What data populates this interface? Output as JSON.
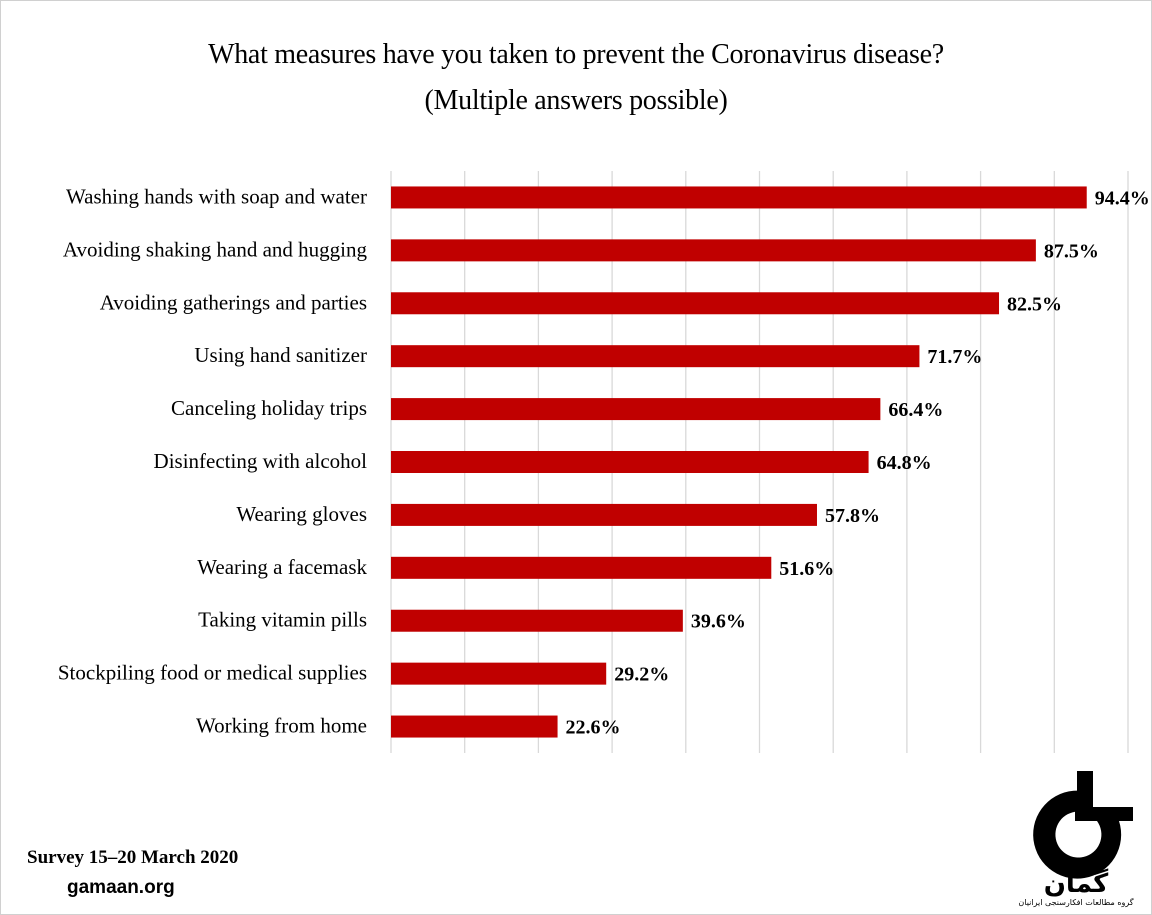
{
  "chart_data": {
    "type": "bar",
    "orientation": "horizontal",
    "title": "What measures have you taken to prevent the Coronavirus disease?",
    "subtitle": "(Multiple answers possible)",
    "categories": [
      "Washing hands with soap and water",
      "Avoiding shaking hand and hugging",
      "Avoiding gatherings and parties",
      "Using hand sanitizer",
      "Canceling holiday trips",
      "Disinfecting with alcohol",
      "Wearing gloves",
      "Wearing a facemask",
      "Taking vitamin pills",
      "Stockpiling food or medical supplies",
      "Working from home"
    ],
    "values": [
      94.4,
      87.5,
      82.5,
      71.7,
      66.4,
      64.8,
      57.8,
      51.6,
      39.6,
      29.2,
      22.6
    ],
    "value_labels": [
      "94.4%",
      "87.5%",
      "82.5%",
      "71.7%",
      "66.4%",
      "64.8%",
      "57.8%",
      "51.6%",
      "39.6%",
      "29.2%",
      "22.6%"
    ],
    "xlim": [
      0,
      100
    ],
    "grid": "vertical",
    "bar_color": "#c00000",
    "grid_color": "#d9d9d9"
  },
  "footer": {
    "survey": "Survey 15–20 March 2020",
    "site": "gamaan.org"
  },
  "logo": {
    "brand": "گمان",
    "tagline": "گروه مطالعات افکارسنجی ایرانیان",
    "color": "#000000"
  }
}
